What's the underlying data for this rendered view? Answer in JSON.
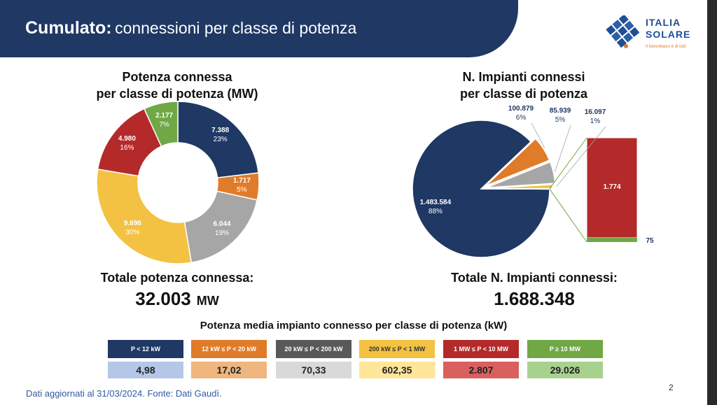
{
  "header": {
    "title_bold": "Cumulato:",
    "title_rest": "connessioni per classe di potenza"
  },
  "logo": {
    "line1": "ITALIA",
    "line2": "SOLARE",
    "tagline": "Il fotovoltaico è di tutti"
  },
  "colors": {
    "header_bg": "#1f3864",
    "navy": "#1f3864",
    "orange": "#e07b2a",
    "gray": "#a6a6a6",
    "yellow": "#f4c242",
    "red": "#b42a2a",
    "green": "#70a845"
  },
  "chart_data": [
    {
      "type": "pie",
      "variant": "donut",
      "title": [
        "Potenza connessa",
        "per classe di potenza (MW)"
      ],
      "labels": [
        "P < 12 kW",
        "12 kW ≤ P < 20 kW",
        "20 kW ≤ P < 200 kW",
        "200 kW ≤ P < 1 MW",
        "1 MW ≤ P < 10 MW",
        "P ≥ 10 MW"
      ],
      "values": [
        7388,
        1717,
        6044,
        9696,
        4980,
        2177
      ],
      "value_labels": [
        "7.388",
        "1.717",
        "6.044",
        "9.696",
        "4.980",
        "2.177"
      ],
      "percent_labels": [
        "23%",
        "5%",
        "19%",
        "30%",
        "16%",
        "7%"
      ]
    },
    {
      "type": "pie",
      "variant": "bar-of-pie",
      "title": [
        "N. Impianti connessi",
        "per classe di potenza"
      ],
      "labels": [
        "P < 12 kW",
        "12 kW ≤ P < 20 kW",
        "20 kW ≤ P < 200 kW",
        "200 kW ≤ P < 1 MW",
        "1 MW ≤ P < 10 MW",
        "P ≥ 10 MW"
      ],
      "values": [
        1483584,
        100879,
        85939,
        16097,
        1774,
        75
      ],
      "value_labels": [
        "1.483.584",
        "100.879",
        "85.939",
        "16.097",
        "1.774",
        "75"
      ],
      "percent_labels": [
        "88%",
        "6%",
        "5%",
        "1%",
        "",
        ""
      ]
    }
  ],
  "totals": {
    "power_label": "Totale potenza connessa:",
    "power_value": "32.003",
    "power_unit": "MW",
    "count_label": "Totale N. Impianti connessi:",
    "count_value": "1.688.348"
  },
  "table": {
    "title": "Potenza media impianto connesso per classe di potenza (kW)",
    "headers": [
      "P < 12 kW",
      "12 kW ≤ P < 20 kW",
      "20 kW ≤ P < 200 kW",
      "200 kW ≤ P < 1 MW",
      "1 MW ≤ P  < 10 MW",
      "P ≥ 10 MW"
    ],
    "values": [
      "4,98",
      "17,02",
      "70,33",
      "602,35",
      "2.807",
      "29.026"
    ],
    "header_colors": [
      "#1f3864",
      "#e07b2a",
      "#595959",
      "#f4c242",
      "#b42a2a",
      "#70a845"
    ],
    "value_colors": [
      "#b4c7e7",
      "#f0b67f",
      "#d9d9d9",
      "#ffe699",
      "#d9605e",
      "#a9d18e"
    ]
  },
  "footer": {
    "source": "Dati aggiornati al 31/03/2024. Fonte: Dati Gaudì.",
    "page": "2"
  }
}
